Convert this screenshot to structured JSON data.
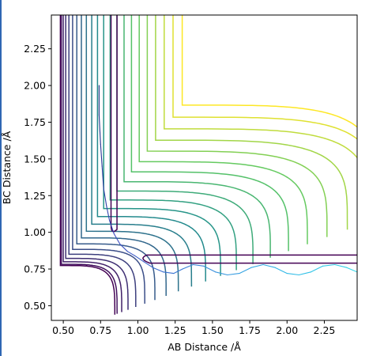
{
  "chart_data": {
    "type": "contour",
    "title": "",
    "xlabel": "AB Distance /Å",
    "ylabel": "BC Distance /Å",
    "xlim": [
      0.42,
      2.47
    ],
    "ylim": [
      0.4,
      2.48
    ],
    "xticks": [
      0.5,
      0.75,
      1.0,
      1.25,
      1.5,
      1.75,
      2.0,
      2.25
    ],
    "xtick_labels": [
      "0.50",
      "0.75",
      "1.00",
      "1.25",
      "1.50",
      "1.75",
      "2.00",
      "2.25"
    ],
    "yticks": [
      0.5,
      0.75,
      1.0,
      1.25,
      1.5,
      1.75,
      2.0,
      2.25
    ],
    "ytick_labels": [
      "0.50",
      "0.75",
      "1.00",
      "1.25",
      "1.50",
      "1.75",
      "2.00",
      "2.25"
    ],
    "colormap": [
      "#440154",
      "#3b528b",
      "#21908d",
      "#5dc963",
      "#fde725"
    ],
    "contour_count": 22,
    "grid": false,
    "trajectory": {
      "x": [
        0.74,
        0.74,
        0.75,
        0.76,
        0.77,
        0.79,
        0.81,
        0.84,
        0.88,
        0.93,
        0.98,
        1.04,
        1.1,
        1.17,
        1.24,
        1.3,
        1.37,
        1.44,
        1.52,
        1.6,
        1.68,
        1.76,
        1.84,
        1.92,
        2.0,
        2.08,
        2.16,
        2.24,
        2.32,
        2.4,
        2.47
      ],
      "y": [
        2.0,
        1.8,
        1.6,
        1.45,
        1.3,
        1.18,
        1.08,
        0.99,
        0.92,
        0.87,
        0.84,
        0.8,
        0.76,
        0.73,
        0.72,
        0.75,
        0.78,
        0.77,
        0.73,
        0.71,
        0.72,
        0.76,
        0.78,
        0.76,
        0.72,
        0.71,
        0.73,
        0.77,
        0.78,
        0.76,
        0.73
      ]
    },
    "trajectory_colors": [
      "#1f2d86",
      "#3b4cc0",
      "#3a7bd5",
      "#33b0e6",
      "#2fd6e8"
    ]
  },
  "page": {
    "border_color": "#2f66b3"
  }
}
